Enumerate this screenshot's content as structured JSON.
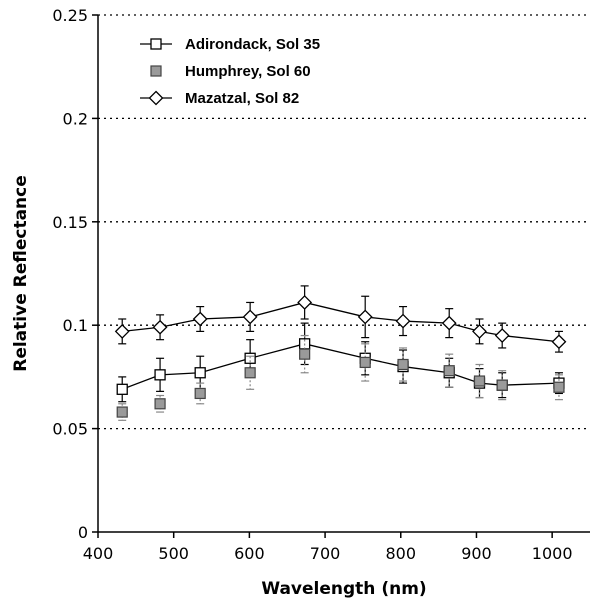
{
  "chart_data": {
    "type": "line",
    "xlabel": "Wavelength (nm)",
    "ylabel": "Relative Reflectance",
    "xlim": [
      400,
      1050
    ],
    "ylim": [
      0,
      0.25
    ],
    "x_ticks": [
      "400",
      "500",
      "600",
      "700",
      "800",
      "900",
      "1000"
    ],
    "y_ticks": [
      "0",
      "0.05",
      "0.1",
      "0.15",
      "0.2",
      "0.25"
    ],
    "grid": "horizontal dotted",
    "legend_position": "top-left",
    "series": [
      {
        "name": "Adirondack, Sol 35",
        "marker": "open-square",
        "line": true,
        "x": [
          432,
          482,
          535,
          601,
          673,
          753,
          803,
          864,
          904,
          934,
          1009
        ],
        "y": [
          0.069,
          0.076,
          0.077,
          0.084,
          0.091,
          0.084,
          0.08,
          0.077,
          0.072,
          0.071,
          0.072
        ],
        "err": [
          0.006,
          0.008,
          0.008,
          0.009,
          0.01,
          0.008,
          0.008,
          0.007,
          0.007,
          0.006,
          0.005
        ]
      },
      {
        "name": "Humphrey, Sol 60",
        "marker": "shaded-square",
        "line": false,
        "x": [
          432,
          482,
          535,
          601,
          673,
          753,
          803,
          864,
          904,
          934,
          1009
        ],
        "y": [
          0.058,
          0.062,
          0.067,
          0.077,
          0.086,
          0.082,
          0.081,
          0.078,
          0.073,
          0.071,
          0.07
        ],
        "err": [
          0.004,
          0.004,
          0.005,
          0.008,
          0.009,
          0.009,
          0.008,
          0.008,
          0.008,
          0.007,
          0.006
        ]
      },
      {
        "name": "Mazatzal, Sol 82",
        "marker": "open-diamond",
        "line": true,
        "x": [
          432,
          482,
          535,
          601,
          673,
          753,
          803,
          864,
          904,
          934,
          1009
        ],
        "y": [
          0.097,
          0.099,
          0.103,
          0.104,
          0.111,
          0.104,
          0.102,
          0.101,
          0.097,
          0.095,
          0.092
        ],
        "err": [
          0.006,
          0.006,
          0.006,
          0.007,
          0.008,
          0.01,
          0.007,
          0.007,
          0.006,
          0.006,
          0.005
        ]
      }
    ]
  }
}
